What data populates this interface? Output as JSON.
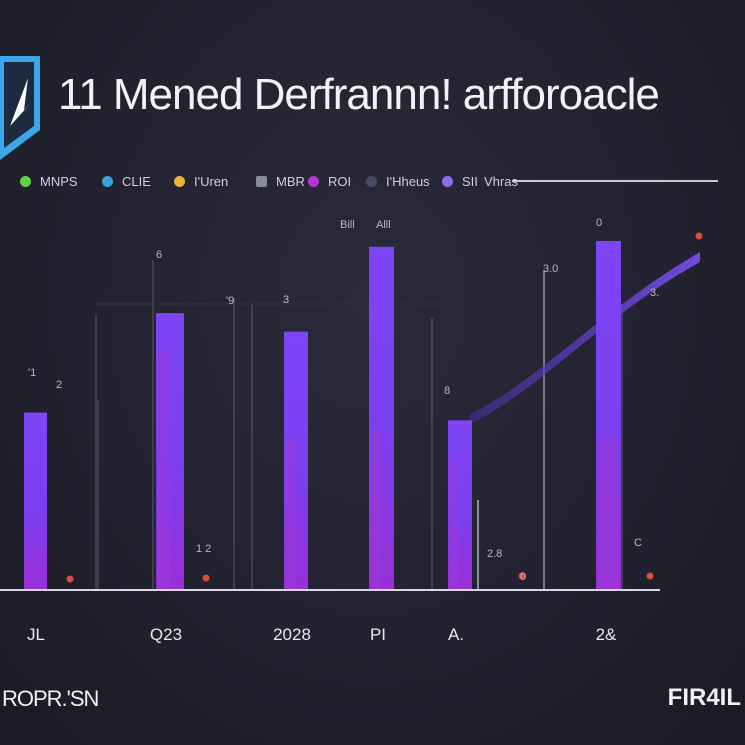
{
  "title": "11 Mened Derfrannn! arfforoacle",
  "legend": [
    {
      "label": "MNPS",
      "color": "#5fd24a"
    },
    {
      "label": "CLIE",
      "color": "#3aa0e0"
    },
    {
      "label": "I'Uren",
      "color": "#f0b030"
    },
    {
      "label": "MBR",
      "color": "#8a8aa0"
    },
    {
      "label": "ROI",
      "color": "#b03ad0"
    },
    {
      "label": "I'Hheus",
      "color": "#4a4a66"
    },
    {
      "label": "SII",
      "color": "#8f6cf0"
    },
    {
      "label": "Vhras",
      "color": "#c9c9d6"
    }
  ],
  "footer": {
    "left": "ROPR.'SN",
    "right": "FІR4IL"
  },
  "chart_data": {
    "type": "bar",
    "categories": [
      "JL",
      "Q23",
      "2028",
      "PI",
      "A.",
      "2&"
    ],
    "series": [
      {
        "values": [
          182,
          284,
          265,
          352,
          174,
          358
        ],
        "color": "#7a3ff0"
      }
    ],
    "ylim": [
      0,
      400
    ],
    "annotations": [
      "'1",
      "2",
      "6",
      "'9",
      "Bill",
      "Alll",
      "3",
      "8",
      "1 2",
      "0",
      "C",
      "3.0",
      "2.8",
      "0",
      "3."
    ],
    "trend_line": {
      "color": "#6b3fd0"
    },
    "markers": {
      "color": "#e04a3a"
    }
  }
}
